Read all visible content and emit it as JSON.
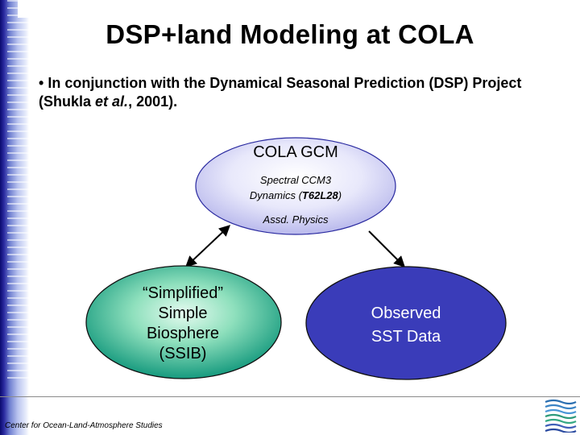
{
  "slide": {
    "title": "DSP+land Modeling at COLA",
    "bullet_symbol": "•",
    "bullet_part1": "In conjunction with the Dynamical Seasonal Prediction (DSP) Project (Shukla",
    "bullet_italic": "et al.",
    "bullet_part2": ", 2001)."
  },
  "diagram": {
    "gcm": {
      "title": "COLA GCM",
      "line1": "Spectral CCM3",
      "line2_prefix": "Dynamics (",
      "line2_bold": "T62L28",
      "line2_suffix": ")",
      "line3": "Assd. Physics"
    },
    "ssib": {
      "line1": "“Simplified”",
      "line2": "Simple",
      "line3": "Biosphere",
      "line4": "(SSIB)"
    },
    "sst": {
      "line1": "Observed",
      "line2": "SST Data"
    }
  },
  "footer": {
    "text": "Center for Ocean-Land-Atmosphere Studies"
  },
  "colors": {
    "gcm_fill": "#dcdcf7",
    "ssib_fill": "#2aa58c",
    "sst_fill": "#3a3cb9",
    "sidebar": "#1a1a8c"
  }
}
